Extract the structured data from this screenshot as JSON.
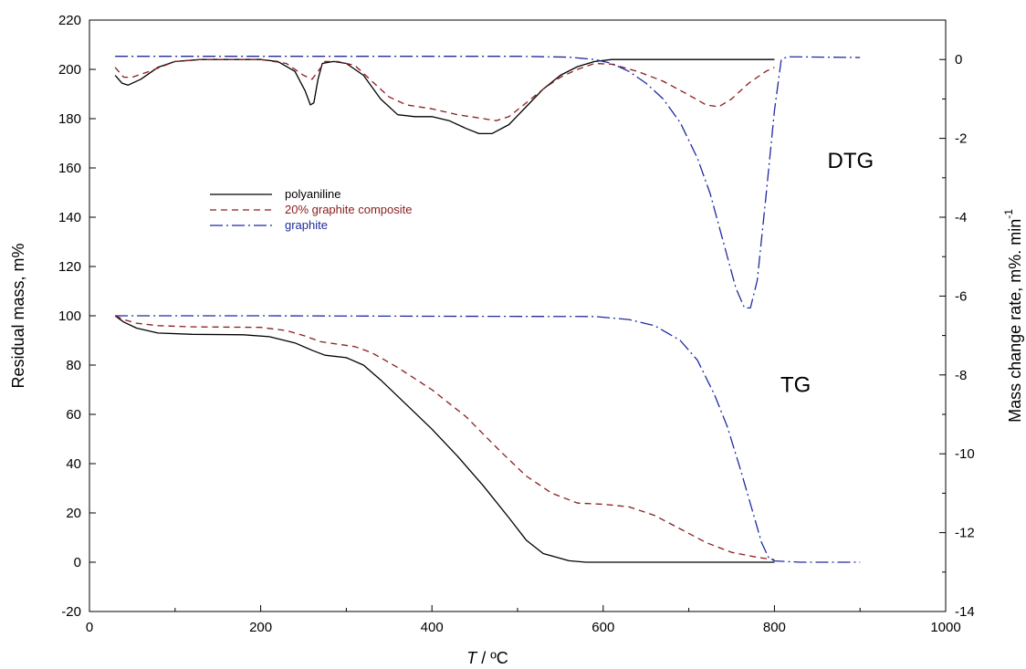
{
  "chart_data": {
    "type": "line",
    "title": "",
    "xlabel": {
      "italic": "T",
      "rest": " / ºC"
    },
    "ylabel": "Residual mass, m%",
    "y2label": {
      "main": "Mass change rate,  m%. min",
      "sup": "-1"
    },
    "xlim": [
      0,
      1000
    ],
    "ylim": [
      -20,
      220
    ],
    "y2lim": [
      -14,
      1
    ],
    "x_ticks": [
      "0",
      "200",
      "400",
      "600",
      "800",
      "1000"
    ],
    "y_ticks": [
      "-20",
      "0",
      "20",
      "40",
      "60",
      "80",
      "100",
      "120",
      "140",
      "160",
      "180",
      "200",
      "220"
    ],
    "y2_ticks": [
      "-14",
      "-12",
      "-10",
      "-8",
      "-6",
      "-4",
      "-2",
      "0"
    ],
    "grid": false,
    "legend_position": "upper-left",
    "annotations": [
      {
        "text": "DTG",
        "x": 862,
        "y": 163
      },
      {
        "text": "TG",
        "x": 807,
        "y": 72
      }
    ],
    "series": [
      {
        "name": "polyaniline",
        "color": "#000000",
        "dash": "",
        "tg": [
          [
            30,
            100
          ],
          [
            40,
            97.5
          ],
          [
            55,
            95
          ],
          [
            80,
            93
          ],
          [
            120,
            92.5
          ],
          [
            180,
            92.3
          ],
          [
            210,
            91.5
          ],
          [
            240,
            89
          ],
          [
            260,
            86
          ],
          [
            275,
            84
          ],
          [
            300,
            83
          ],
          [
            320,
            80
          ],
          [
            340,
            74
          ],
          [
            370,
            64
          ],
          [
            400,
            54
          ],
          [
            430,
            43
          ],
          [
            460,
            31
          ],
          [
            490,
            18
          ],
          [
            510,
            9
          ],
          [
            530,
            3.5
          ],
          [
            560,
            0.6
          ],
          [
            580,
            0
          ],
          [
            700,
            0
          ],
          [
            800,
            0
          ]
        ],
        "dtg": [
          [
            30,
            -0.4
          ],
          [
            38,
            -0.6
          ],
          [
            45,
            -0.65
          ],
          [
            60,
            -0.5
          ],
          [
            80,
            -0.2
          ],
          [
            100,
            -0.05
          ],
          [
            130,
            0
          ],
          [
            200,
            0
          ],
          [
            220,
            -0.05
          ],
          [
            240,
            -0.3
          ],
          [
            252,
            -0.8
          ],
          [
            258,
            -1.15
          ],
          [
            262,
            -1.1
          ],
          [
            267,
            -0.5
          ],
          [
            272,
            -0.1
          ],
          [
            285,
            -0.05
          ],
          [
            300,
            -0.1
          ],
          [
            320,
            -0.4
          ],
          [
            340,
            -1.0
          ],
          [
            360,
            -1.4
          ],
          [
            380,
            -1.45
          ],
          [
            400,
            -1.45
          ],
          [
            420,
            -1.55
          ],
          [
            440,
            -1.75
          ],
          [
            455,
            -1.88
          ],
          [
            470,
            -1.88
          ],
          [
            490,
            -1.65
          ],
          [
            510,
            -1.2
          ],
          [
            530,
            -0.75
          ],
          [
            550,
            -0.4
          ],
          [
            570,
            -0.18
          ],
          [
            590,
            -0.05
          ],
          [
            610,
            0
          ],
          [
            800,
            0
          ]
        ]
      },
      {
        "name": "20% graphite composite",
        "color": "#8a1c1c",
        "dash": "7,5",
        "tg": [
          [
            30,
            100
          ],
          [
            40,
            98.5
          ],
          [
            55,
            97
          ],
          [
            80,
            96
          ],
          [
            120,
            95.5
          ],
          [
            200,
            95.3
          ],
          [
            230,
            94
          ],
          [
            250,
            92
          ],
          [
            270,
            89.5
          ],
          [
            290,
            88.5
          ],
          [
            310,
            87.5
          ],
          [
            330,
            85
          ],
          [
            360,
            79
          ],
          [
            400,
            70
          ],
          [
            440,
            59
          ],
          [
            480,
            45
          ],
          [
            510,
            35
          ],
          [
            540,
            28
          ],
          [
            570,
            24
          ],
          [
            600,
            23.5
          ],
          [
            630,
            22.5
          ],
          [
            660,
            19
          ],
          [
            690,
            13.5
          ],
          [
            720,
            8
          ],
          [
            750,
            4
          ],
          [
            780,
            2
          ],
          [
            800,
            1
          ]
        ],
        "dtg": [
          [
            30,
            -0.2
          ],
          [
            40,
            -0.45
          ],
          [
            50,
            -0.45
          ],
          [
            70,
            -0.3
          ],
          [
            100,
            -0.05
          ],
          [
            130,
            0
          ],
          [
            200,
            0
          ],
          [
            230,
            -0.1
          ],
          [
            250,
            -0.4
          ],
          [
            260,
            -0.5
          ],
          [
            267,
            -0.3
          ],
          [
            275,
            -0.05
          ],
          [
            290,
            -0.05
          ],
          [
            310,
            -0.15
          ],
          [
            330,
            -0.55
          ],
          [
            350,
            -0.95
          ],
          [
            370,
            -1.15
          ],
          [
            400,
            -1.25
          ],
          [
            430,
            -1.4
          ],
          [
            460,
            -1.5
          ],
          [
            475,
            -1.55
          ],
          [
            490,
            -1.45
          ],
          [
            510,
            -1.1
          ],
          [
            530,
            -0.75
          ],
          [
            550,
            -0.45
          ],
          [
            570,
            -0.25
          ],
          [
            590,
            -0.1
          ],
          [
            610,
            -0.12
          ],
          [
            640,
            -0.3
          ],
          [
            670,
            -0.55
          ],
          [
            700,
            -0.9
          ],
          [
            720,
            -1.15
          ],
          [
            735,
            -1.2
          ],
          [
            750,
            -1.0
          ],
          [
            770,
            -0.6
          ],
          [
            790,
            -0.3
          ],
          [
            800,
            -0.2
          ]
        ]
      },
      {
        "name": "graphite",
        "color": "#1f2aa0",
        "dash": "14,4,2,4",
        "tg": [
          [
            30,
            100
          ],
          [
            200,
            100
          ],
          [
            400,
            99.8
          ],
          [
            590,
            99.7
          ],
          [
            630,
            98.5
          ],
          [
            660,
            96
          ],
          [
            690,
            90
          ],
          [
            710,
            82
          ],
          [
            730,
            68
          ],
          [
            745,
            55
          ],
          [
            760,
            38
          ],
          [
            775,
            20
          ],
          [
            785,
            8
          ],
          [
            793,
            2
          ],
          [
            800,
            0.5
          ],
          [
            830,
            0
          ],
          [
            900,
            0
          ]
        ],
        "dtg": [
          [
            30,
            0.08
          ],
          [
            300,
            0.08
          ],
          [
            500,
            0.08
          ],
          [
            560,
            0.06
          ],
          [
            590,
            0.0
          ],
          [
            610,
            -0.1
          ],
          [
            630,
            -0.3
          ],
          [
            650,
            -0.6
          ],
          [
            670,
            -1.0
          ],
          [
            690,
            -1.6
          ],
          [
            710,
            -2.5
          ],
          [
            725,
            -3.4
          ],
          [
            740,
            -4.6
          ],
          [
            755,
            -5.8
          ],
          [
            765,
            -6.3
          ],
          [
            772,
            -6.3
          ],
          [
            780,
            -5.6
          ],
          [
            790,
            -3.5
          ],
          [
            800,
            -1.3
          ],
          [
            808,
            0.0
          ],
          [
            815,
            0.07
          ],
          [
            900,
            0.05
          ]
        ]
      }
    ]
  }
}
